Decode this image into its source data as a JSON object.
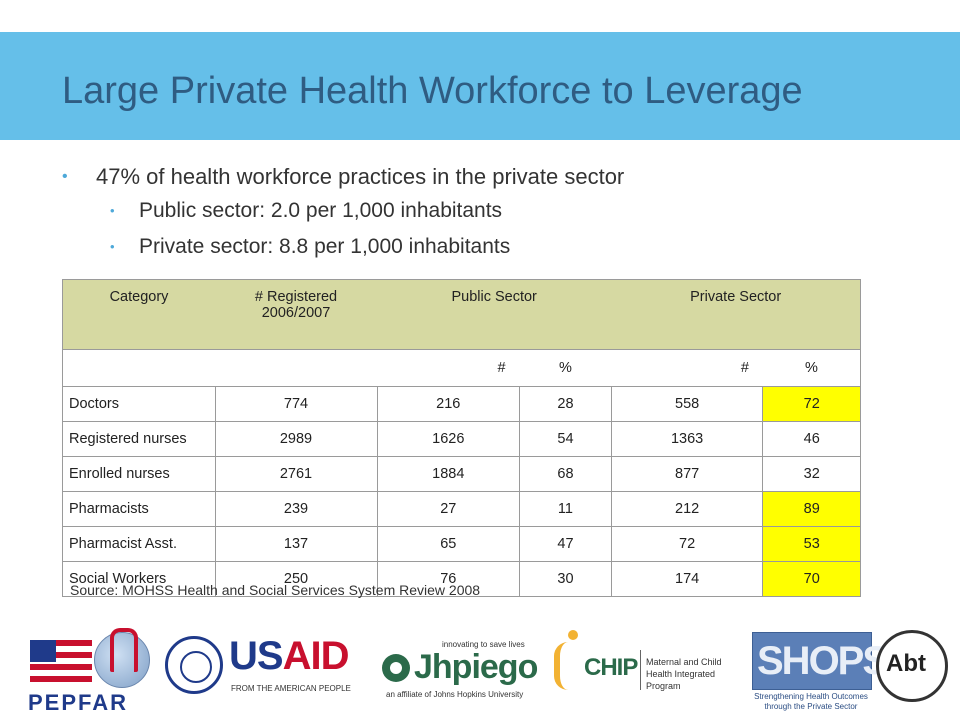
{
  "slide": {
    "title": "Large Private Health Workforce to Leverage"
  },
  "bullets": {
    "main": "47% of health workforce practices in the private sector",
    "sub": [
      "Public sector: 2.0 per 1,000 inhabitants",
      "Private sector: 8.8 per 1,000 inhabitants"
    ]
  },
  "table": {
    "headers": {
      "category": "Category",
      "registered_line1": "# Registered",
      "registered_line2": "2006/2007",
      "public": "Public Sector",
      "private": "Private Sector"
    },
    "subheaders": [
      "#",
      "%",
      "#",
      "%"
    ],
    "rows": [
      {
        "category": "Doctors",
        "registered": "774",
        "public_n": "216",
        "public_pct": "28",
        "private_n": "558",
        "private_pct": "72",
        "highlight": true
      },
      {
        "category": "Registered nurses",
        "registered": "2989",
        "public_n": "1626",
        "public_pct": "54",
        "private_n": "1363",
        "private_pct": "46",
        "highlight": false
      },
      {
        "category": "Enrolled nurses",
        "registered": "2761",
        "public_n": "1884",
        "public_pct": "68",
        "private_n": "877",
        "private_pct": "32",
        "highlight": false
      },
      {
        "category": "Pharmacists",
        "registered": "239",
        "public_n": "27",
        "public_pct": "11",
        "private_n": "212",
        "private_pct": "89",
        "highlight": true
      },
      {
        "category": "Pharmacist  Asst.",
        "registered": "137",
        "public_n": "65",
        "public_pct": "47",
        "private_n": "72",
        "private_pct": "53",
        "highlight": true
      },
      {
        "category": "Social Workers",
        "registered": "250",
        "public_n": "76",
        "public_pct": "30",
        "private_n": "174",
        "private_pct": "70",
        "highlight": true
      }
    ],
    "highlight_color": "#ffff00",
    "header_color": "#d6d9a2"
  },
  "source": "Source: MOHSS Health and Social Services System Review 2008",
  "logos": {
    "pepfar": "PEPFAR",
    "usaid_us": "US",
    "usaid_aid": "AID",
    "usaid_sub": "FROM THE AMERICAN PEOPLE",
    "jhpiego_tag": "innovating to save lives",
    "jhpiego": "Jhpiego",
    "jhpiego_sub": "an affiliate of Johns Hopkins University",
    "mchip": "CHIP",
    "mchip_sub": "Maternal and Child Health Integrated Program",
    "shops": "SHOPS",
    "shops_sub": "Strengthening Health Outcomes through the Private Sector",
    "abt": "Abt"
  },
  "colors": {
    "title_band": "#65bfe9",
    "title_text": "#2f5c82",
    "bullet": "#4ea9d9"
  }
}
